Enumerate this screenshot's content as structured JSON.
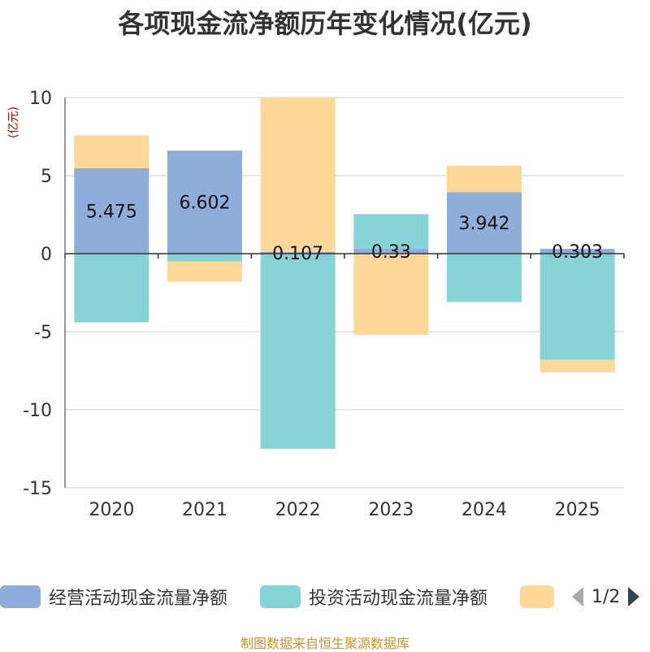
{
  "title": "各项现金流净额历年变化情况(亿元)",
  "y_unit": "(亿元)",
  "source": "制图数据来自恒生聚源数据库",
  "legend": {
    "items": [
      {
        "label": "经营活动现金流量净额",
        "color": "#8eaed9"
      },
      {
        "label": "投资活动现金流量净额",
        "color": "#87d4d8"
      },
      {
        "label": "",
        "color": "#ffd898"
      }
    ],
    "page_label": "1/2"
  },
  "colors": {
    "unit": "#cc0000",
    "axis": "#333333",
    "grid": "#cccccc"
  },
  "chart_data": {
    "type": "bar",
    "stacked": true,
    "title": "各项现金流净额历年变化情况(亿元)",
    "ylabel": "(亿元)",
    "categories": [
      "2020",
      "2021",
      "2022",
      "2023",
      "2024",
      "2025"
    ],
    "ylim": [
      -15,
      10
    ],
    "yticks": [
      10,
      5,
      0,
      -5,
      -10,
      -15
    ],
    "series": [
      {
        "name": "经营活动现金流量净额",
        "color": "#8eaed9",
        "values": [
          5.475,
          6.602,
          0.107,
          0.33,
          3.942,
          0.303
        ],
        "labels": [
          "5.475",
          "6.602",
          "0.107",
          "0.33",
          "3.942",
          "0.303"
        ]
      },
      {
        "name": "投资活动现金流量净额",
        "color": "#87d4d8",
        "values": [
          -4.4,
          -0.5,
          -12.5,
          2.2,
          -3.1,
          -6.8
        ]
      },
      {
        "name": "",
        "color": "#ffd898",
        "values": [
          2.1,
          -1.3,
          9.9,
          -5.2,
          1.7,
          -0.8
        ]
      }
    ]
  }
}
